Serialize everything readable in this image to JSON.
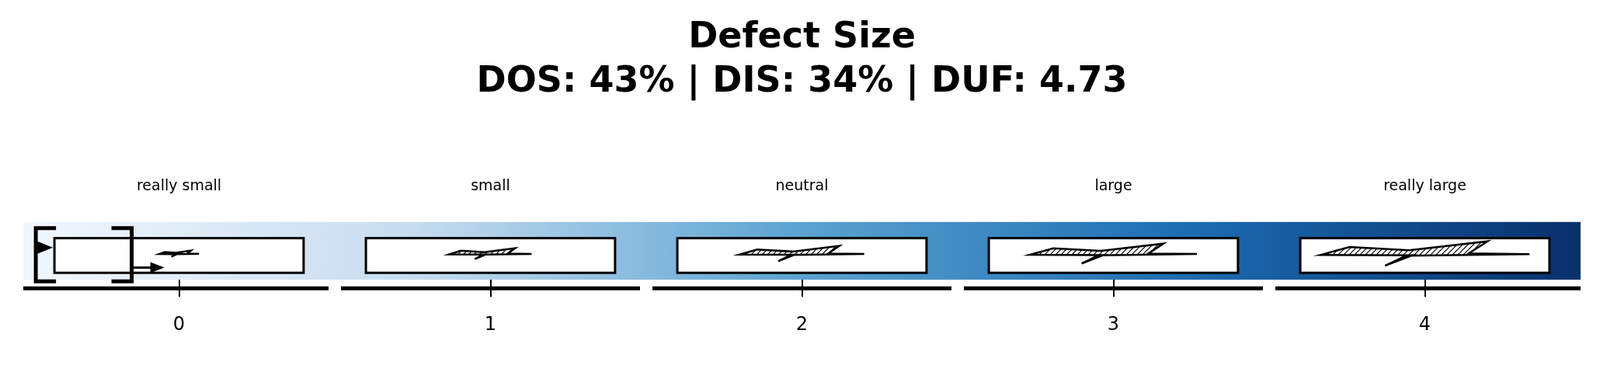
{
  "chart_data": {
    "type": "scale",
    "title": "Defect Size",
    "subtitle": "DOS: 43% | DIS: 34% | DUF: 4.73",
    "categories": [
      "really small",
      "small",
      "neutral",
      "large",
      "really large"
    ],
    "xlim": [
      -0.5,
      4.5
    ],
    "xticks": [
      0,
      1,
      2,
      3,
      4
    ],
    "selected": 0,
    "colors": [
      "#f2f7fd",
      "#c6dcef",
      "#5ba3d0",
      "#1c6cb1",
      "#08306b"
    ]
  }
}
